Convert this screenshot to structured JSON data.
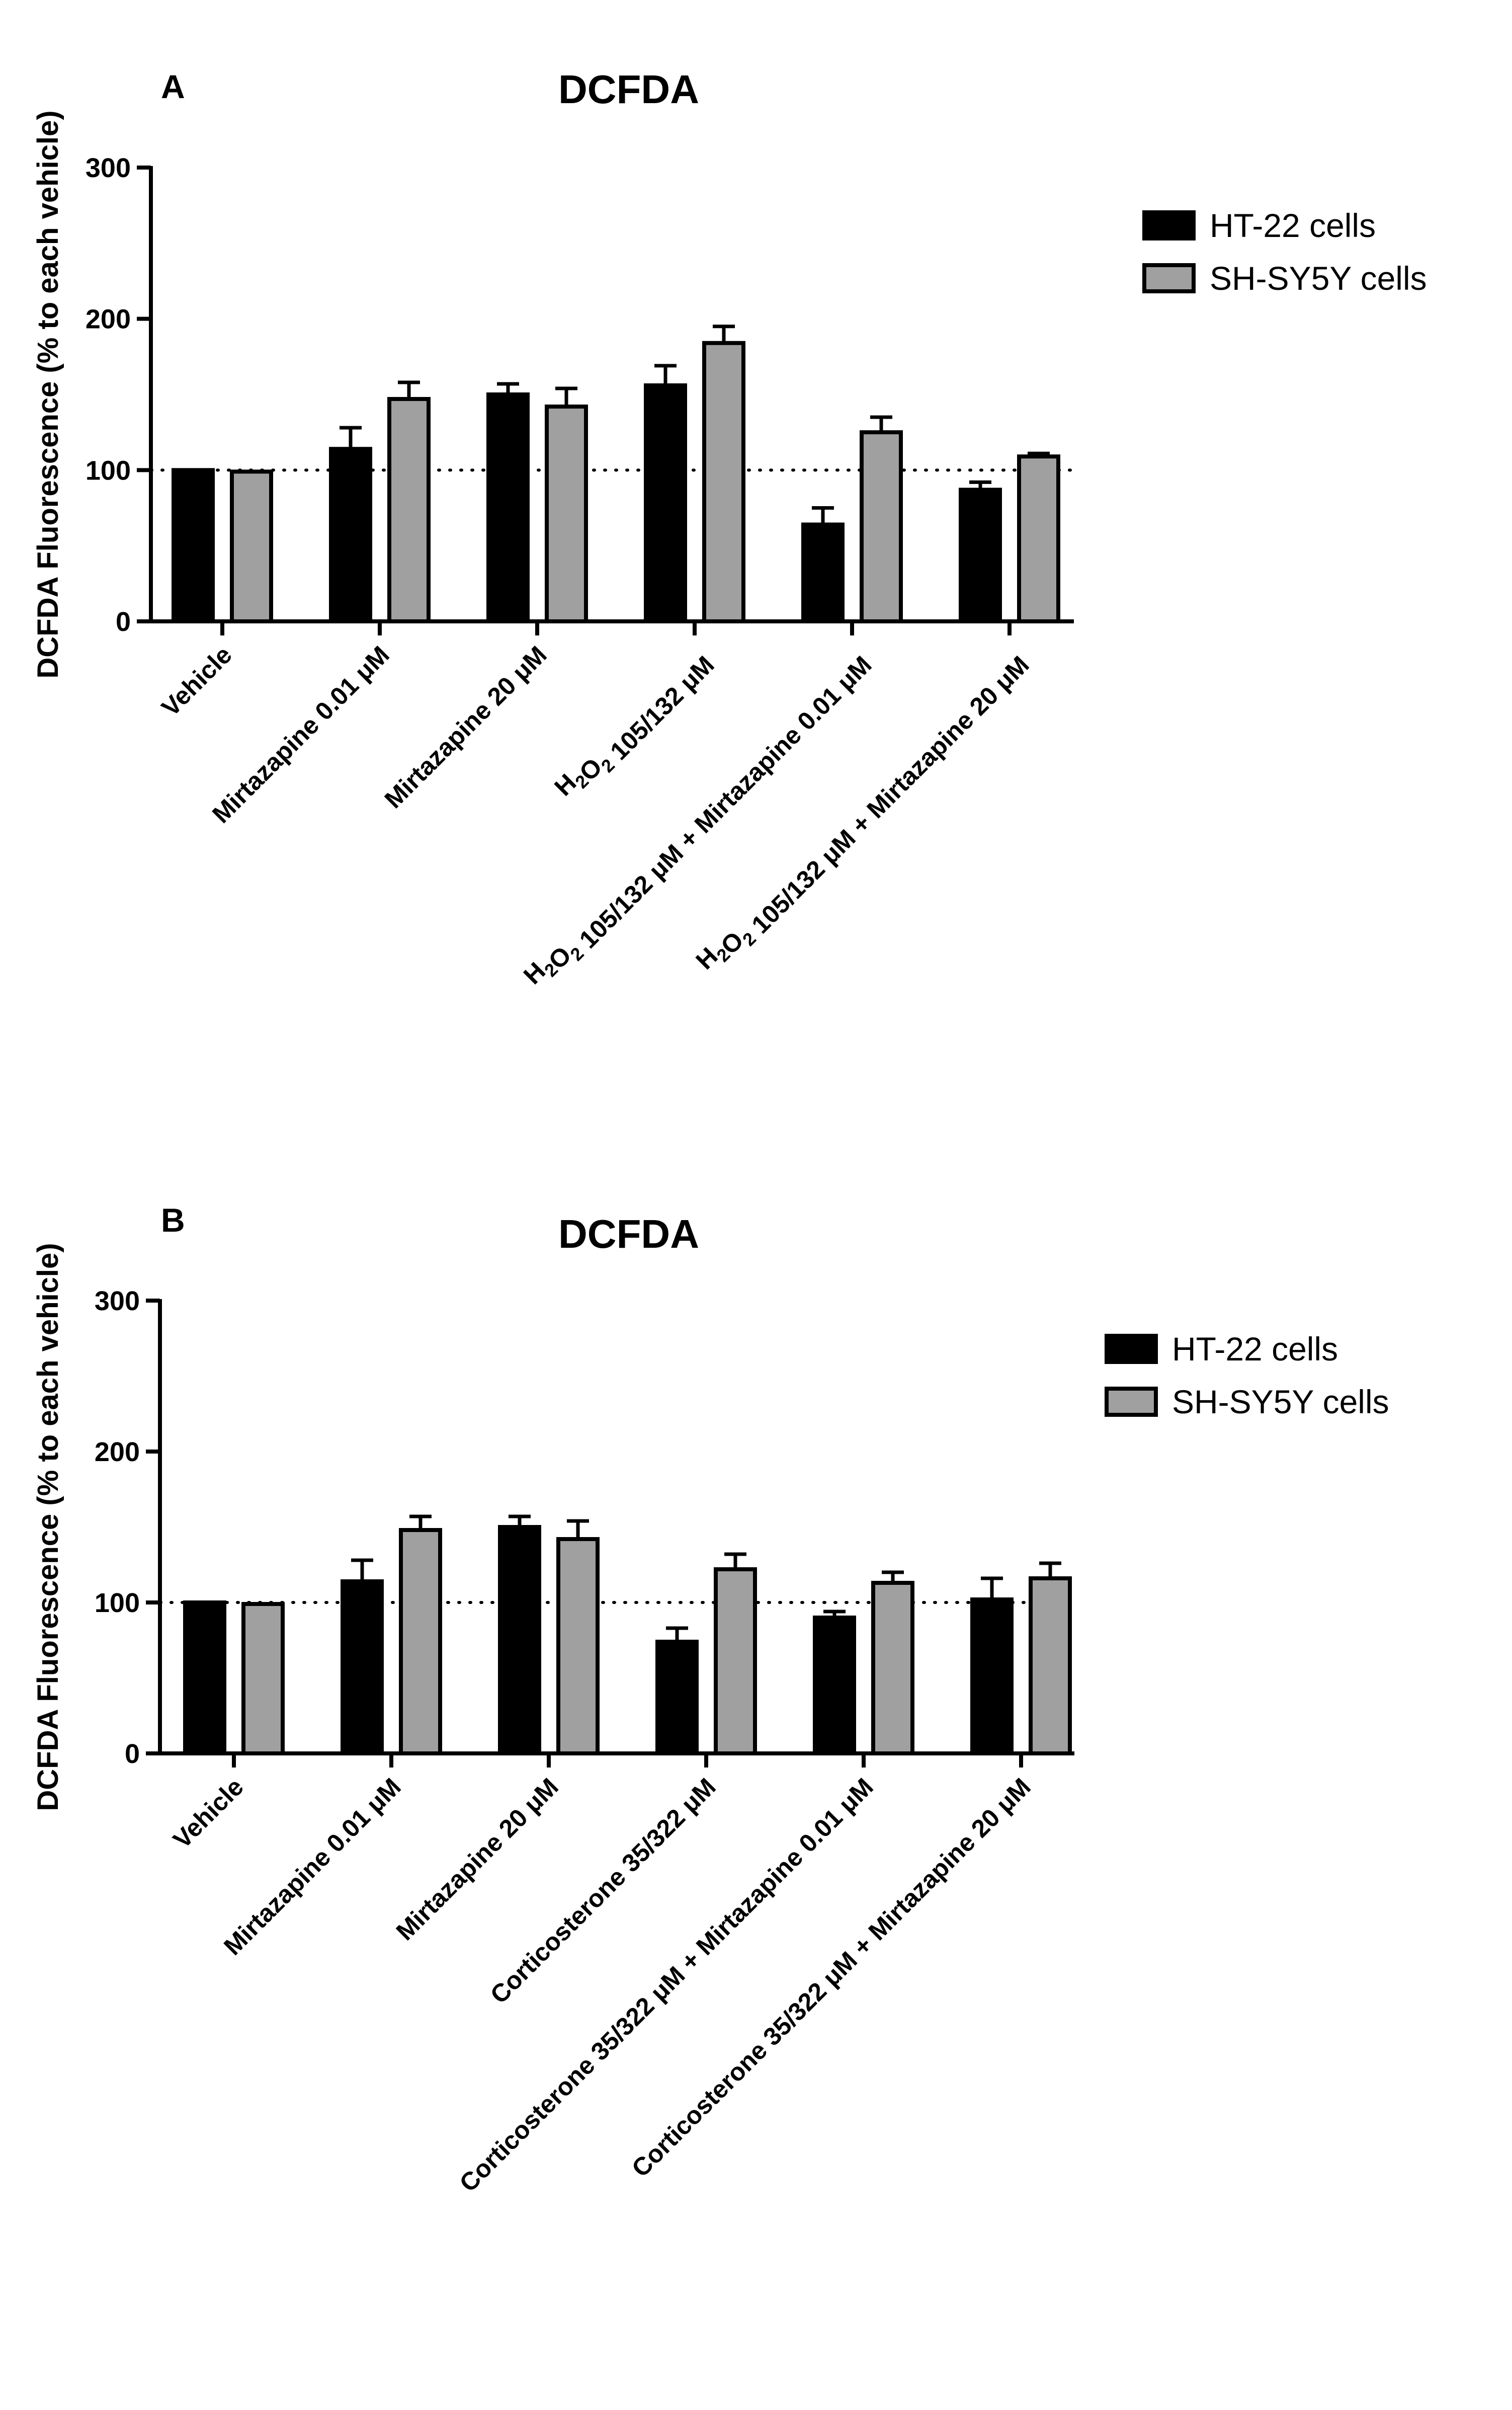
{
  "chart_data": [
    {
      "panel": "A",
      "type": "bar",
      "title": "DCFDA",
      "ylabel": "DCFDA  Fluorescence (% to each vehicle)",
      "xlabel": "",
      "ylim": [
        0,
        300
      ],
      "yticks": [
        "0",
        "100",
        "200",
        "300"
      ],
      "reference_line": 100,
      "legend_position": "top-right",
      "categories": [
        "Vehicle",
        "Mirtazapine 0.01 μM",
        "Mirtazapine 20 μM",
        "H₂O₂ 105/132 μM",
        "H₂O₂ 105/132 μM + Mirtazapine 0.01 μM",
        "H₂O₂ 105/132 μM + Mirtazapine 20 μM"
      ],
      "series": [
        {
          "name": "HT-22 cells",
          "color": "#000000",
          "values": [
            100,
            114,
            150,
            156,
            64,
            87
          ],
          "errors": [
            0,
            14,
            7,
            13,
            11,
            5
          ]
        },
        {
          "name": "SH-SY5Y cells",
          "color": "#a0a0a0",
          "values": [
            99,
            147,
            142,
            184,
            125,
            109
          ],
          "errors": [
            0,
            11,
            12,
            11,
            10,
            2
          ]
        }
      ]
    },
    {
      "panel": "B",
      "type": "bar",
      "title": "DCFDA",
      "ylabel": "DCFDA  Fluorescence (% to each vehicle)",
      "xlabel": "",
      "ylim": [
        0,
        300
      ],
      "yticks": [
        "0",
        "100",
        "200",
        "300"
      ],
      "reference_line": 100,
      "legend_position": "top-right",
      "categories": [
        "Vehicle",
        "Mirtazapine 0.01 μM",
        "Mirtazapine 20 μM",
        "Corticosterone 35/322 μM",
        "Corticosterone 35/322 μM + Mirtazapine 0.01 μM",
        "Corticosterone 35/322 μM + Mirtazapine 20 μM"
      ],
      "series": [
        {
          "name": "HT-22 cells",
          "color": "#000000",
          "values": [
            100,
            114,
            150,
            74,
            90,
            102
          ],
          "errors": [
            0,
            14,
            7,
            9,
            4,
            14
          ]
        },
        {
          "name": "SH-SY5Y cells",
          "color": "#a0a0a0",
          "values": [
            99,
            148,
            142,
            122,
            113,
            116
          ],
          "errors": [
            0,
            9,
            12,
            10,
            7,
            10
          ]
        }
      ]
    }
  ]
}
